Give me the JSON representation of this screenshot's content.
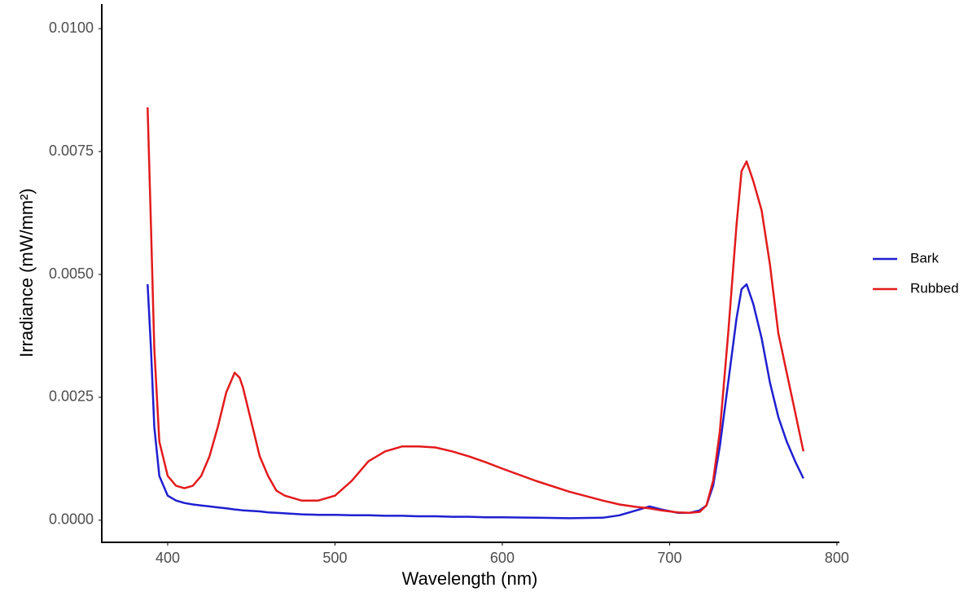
{
  "chart_data": {
    "type": "line",
    "x_label": "Wavelength (nm)",
    "y_label": "Irradiance (mW/mm²)",
    "x": [
      388,
      390,
      392,
      395,
      400,
      405,
      410,
      415,
      420,
      425,
      430,
      435,
      440,
      443,
      445,
      450,
      455,
      460,
      465,
      470,
      480,
      490,
      500,
      510,
      520,
      530,
      540,
      550,
      560,
      570,
      580,
      590,
      600,
      620,
      640,
      660,
      670,
      680,
      688,
      695,
      705,
      712,
      718,
      722,
      726,
      730,
      735,
      740,
      743,
      746,
      750,
      755,
      760,
      765,
      770,
      775,
      780
    ],
    "series": [
      {
        "name": "Bark",
        "color": "#1f1fd1",
        "values": [
          0.0048,
          0.0035,
          0.0019,
          0.0009,
          0.0005,
          0.0004,
          0.00035,
          0.00032,
          0.0003,
          0.00028,
          0.00026,
          0.00024,
          0.00022,
          0.00021,
          0.0002,
          0.00019,
          0.00018,
          0.00016,
          0.00015,
          0.00014,
          0.00012,
          0.00011,
          0.00011,
          0.0001,
          0.0001,
          9e-05,
          9e-05,
          8e-05,
          8e-05,
          7e-05,
          7e-05,
          6e-05,
          6e-05,
          5e-05,
          4e-05,
          5e-05,
          0.0001,
          0.0002,
          0.00028,
          0.00022,
          0.00015,
          0.00015,
          0.0002,
          0.0003,
          0.0007,
          0.0015,
          0.0028,
          0.0041,
          0.0047,
          0.0048,
          0.0044,
          0.0037,
          0.0028,
          0.0021,
          0.0016,
          0.0012,
          0.00085
        ]
      },
      {
        "name": "Rubbed",
        "color": "#e31a1c",
        "values": [
          0.0084,
          0.006,
          0.0035,
          0.0016,
          0.0009,
          0.0007,
          0.00065,
          0.0007,
          0.0009,
          0.0013,
          0.0019,
          0.0026,
          0.003,
          0.0029,
          0.0027,
          0.002,
          0.0013,
          0.0009,
          0.0006,
          0.0005,
          0.0004,
          0.0004,
          0.0005,
          0.0008,
          0.0012,
          0.0014,
          0.0015,
          0.0015,
          0.00148,
          0.0014,
          0.0013,
          0.00118,
          0.00105,
          0.0008,
          0.00058,
          0.0004,
          0.00032,
          0.00027,
          0.00024,
          0.0002,
          0.00016,
          0.00015,
          0.00017,
          0.0003,
          0.0008,
          0.0018,
          0.0038,
          0.006,
          0.0071,
          0.0073,
          0.0069,
          0.0063,
          0.0052,
          0.0038,
          0.003,
          0.0022,
          0.0014
        ]
      }
    ],
    "xlim": [
      360.6,
      801
    ],
    "ylim": [
      -0.00045,
      0.0105
    ],
    "xticks": [
      400,
      500,
      600,
      700,
      800
    ],
    "yticks": [
      {
        "value": 0,
        "label": "0.0000"
      },
      {
        "value": 0.0025,
        "label": "0.0025"
      },
      {
        "value": 0.005,
        "label": "0.0050"
      },
      {
        "value": 0.0075,
        "label": "0.0075"
      },
      {
        "value": 0.01,
        "label": "0.0100"
      }
    ],
    "grid": false,
    "legend": "right"
  }
}
